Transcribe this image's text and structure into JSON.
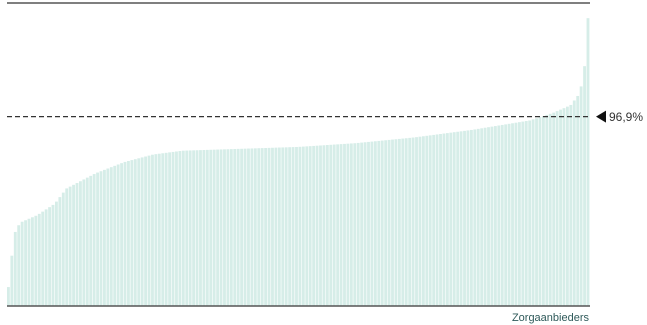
{
  "chart_data": {
    "type": "bar",
    "xlabel": "Zorgaanbieders",
    "ylabel": "",
    "title": "",
    "bar_color": "#d6ede8",
    "bar_edge_color": "#ffffff",
    "axis_color": "#555555",
    "reference_line": {
      "label": "96,9%",
      "value": 96.9,
      "color": "#333333",
      "style": "dashed"
    },
    "ylim": [
      91.9,
      99.9
    ],
    "n_bars": 170,
    "values_percentile_profile": [
      [
        0,
        92.4
      ],
      [
        0.01,
        93.8
      ],
      [
        0.02,
        94.1
      ],
      [
        0.05,
        94.3
      ],
      [
        0.08,
        94.6
      ],
      [
        0.1,
        95.0
      ],
      [
        0.15,
        95.4
      ],
      [
        0.2,
        95.7
      ],
      [
        0.25,
        95.9
      ],
      [
        0.3,
        96.0
      ],
      [
        0.4,
        96.05
      ],
      [
        0.5,
        96.1
      ],
      [
        0.6,
        96.2
      ],
      [
        0.7,
        96.35
      ],
      [
        0.8,
        96.55
      ],
      [
        0.9,
        96.8
      ],
      [
        0.94,
        97.0
      ],
      [
        0.97,
        97.2
      ],
      [
        0.985,
        97.5
      ],
      [
        0.993,
        98.0
      ],
      [
        1.0,
        99.5
      ]
    ]
  }
}
